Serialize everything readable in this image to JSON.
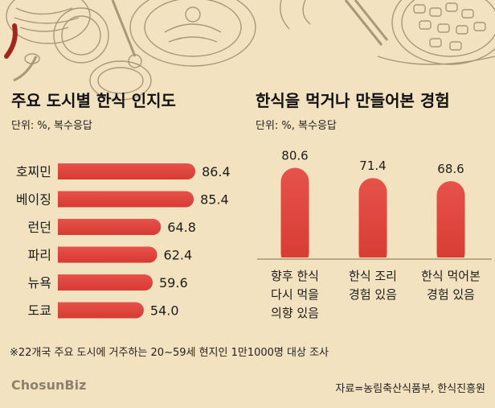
{
  "charts": [
    {
      "type": "bar",
      "orientation": "horizontal",
      "title": "주요 도시별 한식 인지도",
      "subtitle": "단위: %, 복수응답",
      "categories": [
        "호찌민",
        "베이징",
        "런던",
        "파리",
        "뉴욕",
        "도쿄"
      ],
      "values": [
        86.4,
        85.4,
        64.8,
        62.4,
        59.6,
        54.0
      ],
      "value_labels": [
        "86.4",
        "85.4",
        "64.8",
        "62.4",
        "59.6",
        "54.0"
      ],
      "xlim": [
        0,
        100
      ]
    },
    {
      "type": "bar",
      "orientation": "vertical",
      "title": "한식을 먹거나 만들어본 경험",
      "subtitle": "단위: %, 복수응답",
      "categories": [
        [
          "향후 한식",
          "다시 먹을",
          "의향 있음"
        ],
        [
          "한식 조리",
          "경험 있음"
        ],
        [
          "한식 먹어본",
          "경험 있음"
        ]
      ],
      "values": [
        80.6,
        71.4,
        68.6
      ],
      "value_labels": [
        "80.6",
        "71.4",
        "68.6"
      ],
      "ylim": [
        0,
        100
      ]
    }
  ],
  "footnote": "※22개국 주요 도시에 거주하는 20~59세 현지인 1만1000명 대상 조사",
  "logo": "ChosunBiz",
  "source": "자료=농림축산식품부, 한식진흥원",
  "colors": {
    "background": "#f3e2bf",
    "bar": "#e0443c",
    "bar_dark": "#c9302a",
    "text": "#1d1d1d",
    "divider": "#8a7a5a"
  }
}
